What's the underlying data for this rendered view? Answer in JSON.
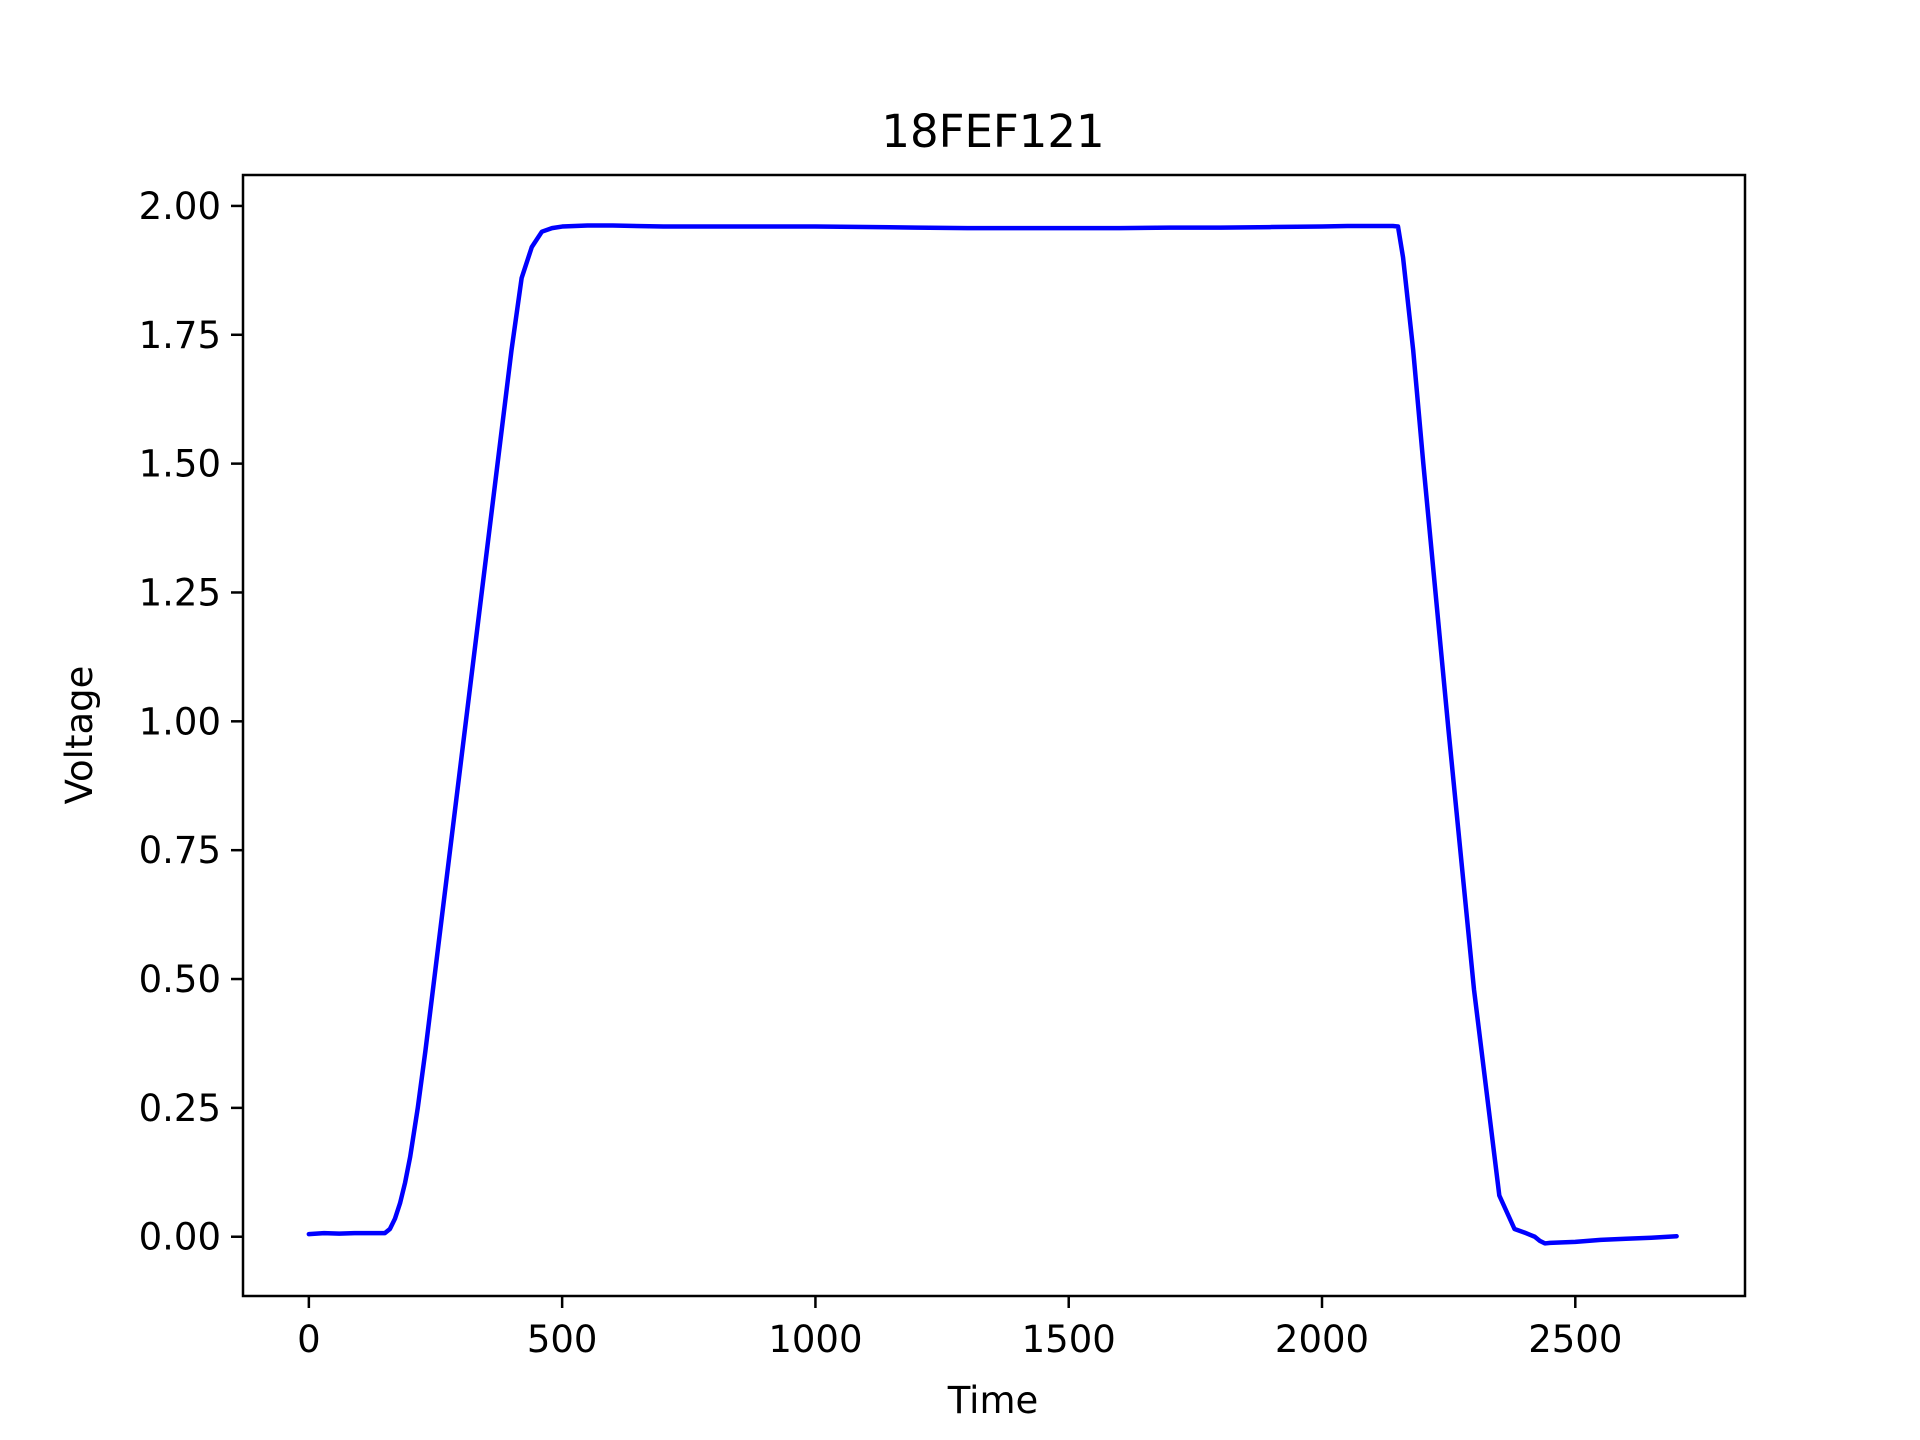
{
  "chart_data": {
    "type": "line",
    "title": "18FEF121",
    "xlabel": "Time",
    "ylabel": "Voltage",
    "xlim": [
      -130,
      2835
    ],
    "ylim": [
      -0.115,
      2.06
    ],
    "xticks": [
      0,
      500,
      1000,
      1500,
      2000,
      2500
    ],
    "xtick_labels": [
      "0",
      "500",
      "1000",
      "1500",
      "2000",
      "2500"
    ],
    "yticks": [
      0.0,
      0.25,
      0.5,
      0.75,
      1.0,
      1.25,
      1.5,
      1.75,
      2.0
    ],
    "ytick_labels": [
      "0.00",
      "0.25",
      "0.50",
      "0.75",
      "1.00",
      "1.25",
      "1.50",
      "1.75",
      "2.00"
    ],
    "grid": false,
    "series": [
      {
        "color": "#0000ff",
        "x": [
          0,
          30,
          60,
          90,
          120,
          150,
          160,
          170,
          180,
          190,
          200,
          215,
          230,
          250,
          280,
          320,
          360,
          400,
          420,
          440,
          460,
          480,
          500,
          550,
          600,
          700,
          800,
          900,
          1000,
          1100,
          1200,
          1300,
          1400,
          1500,
          1600,
          1700,
          1800,
          1900,
          2000,
          2050,
          2100,
          2140,
          2150,
          2160,
          2180,
          2200,
          2250,
          2300,
          2350,
          2380,
          2400,
          2410,
          2420,
          2430,
          2440,
          2450,
          2500,
          2550,
          2600,
          2650,
          2700
        ],
        "y": [
          0.005,
          0.007,
          0.006,
          0.007,
          0.007,
          0.007,
          0.015,
          0.035,
          0.065,
          0.105,
          0.155,
          0.25,
          0.36,
          0.52,
          0.76,
          1.08,
          1.4,
          1.72,
          1.86,
          1.92,
          1.95,
          1.957,
          1.96,
          1.962,
          1.962,
          1.96,
          1.96,
          1.96,
          1.96,
          1.959,
          1.958,
          1.957,
          1.957,
          1.957,
          1.957,
          1.958,
          1.958,
          1.959,
          1.96,
          1.961,
          1.961,
          1.961,
          1.96,
          1.9,
          1.72,
          1.5,
          0.98,
          0.48,
          0.08,
          0.015,
          0.008,
          0.004,
          0.0,
          -0.008,
          -0.013,
          -0.012,
          -0.01,
          -0.006,
          -0.004,
          -0.002,
          0.001
        ]
      }
    ]
  }
}
